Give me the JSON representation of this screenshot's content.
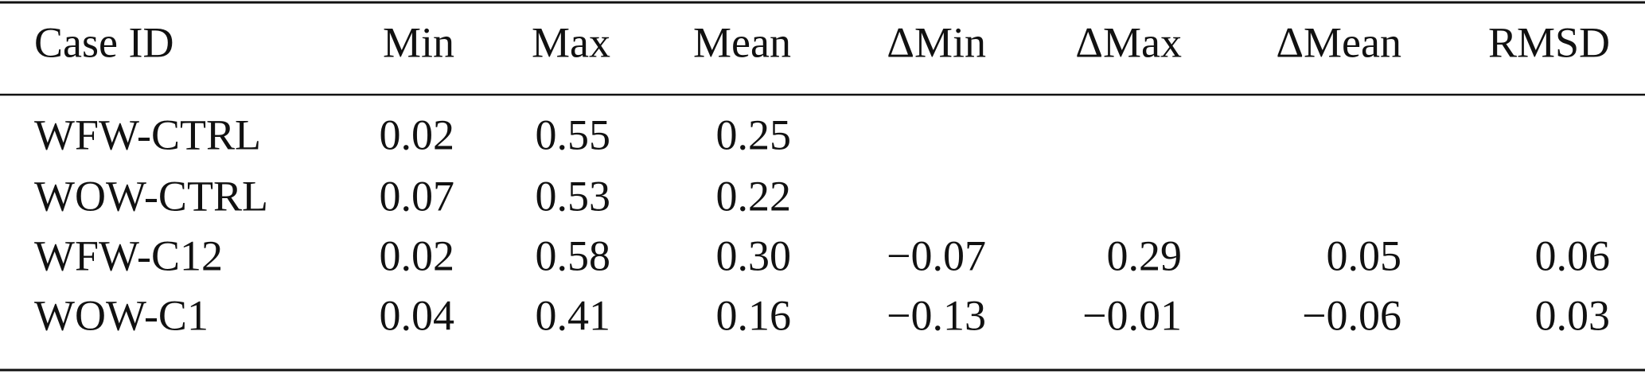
{
  "table": {
    "header": [
      "Case ID",
      "Min",
      "Max",
      "Mean",
      "ΔMin",
      "ΔMax",
      "ΔMean",
      "RMSD"
    ],
    "rows": [
      [
        "WFW-CTRL",
        "0.02",
        "0.55",
        "0.25"
      ],
      [
        "WOW-CTRL",
        "0.07",
        "0.53",
        "0.22"
      ],
      [
        "WFW-C12",
        "0.02",
        "0.58",
        "0.30",
        "−0.07",
        "0.29",
        "0.05",
        "0.06"
      ],
      [
        "WOW-C1",
        "0.04",
        "0.41",
        "0.16",
        "−0.13",
        "−0.01",
        "−0.06",
        "0.03"
      ]
    ]
  }
}
